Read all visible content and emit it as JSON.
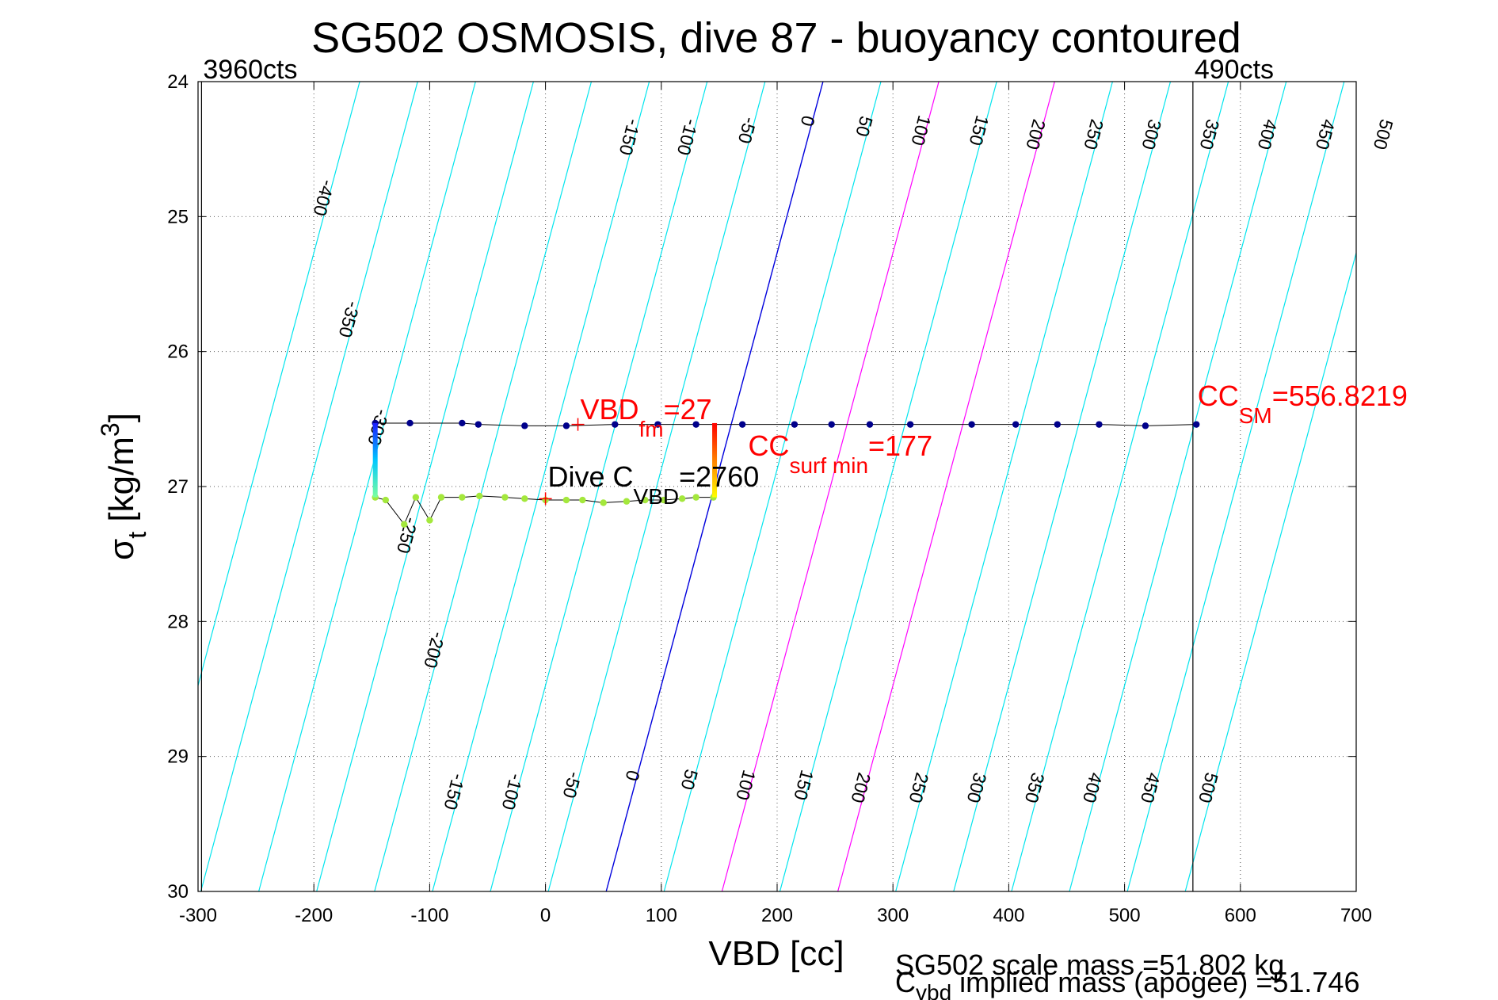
{
  "chart_data": {
    "type": "scatter",
    "title": "SG502 OSMOSIS, dive 87 - buoyancy contoured",
    "xlabel": "VBD [cc]",
    "ylabel_main": "σ",
    "ylabel_sub": "t",
    "ylabel_unit_pre": " [kg/m",
    "ylabel_unit_sup": "3",
    "ylabel_unit_post": "]",
    "xlim": [
      -300,
      700
    ],
    "ylim": [
      24,
      30
    ],
    "y_reversed": true,
    "grid": true,
    "grid_style": "dotted",
    "x_ticks": [
      "-300",
      "-200",
      "-100",
      "0",
      "100",
      "200",
      "300",
      "400",
      "500",
      "600",
      "700"
    ],
    "y_ticks": [
      "24",
      "25",
      "26",
      "27",
      "28",
      "29",
      "30"
    ],
    "count_markers": [
      {
        "vbd": -297,
        "label": "3960cts"
      },
      {
        "vbd": 559,
        "label": "490cts"
      }
    ],
    "contours": {
      "color_regular": "#00e5ee",
      "color_zero": "#0000dd",
      "color_highlight": "#ff00ff",
      "highlight_values": [
        100,
        200
      ],
      "slope_cc_per_sigma": -31.2,
      "values": [
        -400,
        -350,
        -300,
        -250,
        -200,
        -150,
        -100,
        -50,
        0,
        50,
        100,
        150,
        200,
        250,
        300,
        350,
        400,
        450,
        500
      ],
      "top_labels": [
        {
          "text": "-400",
          "c": -400,
          "y": 24.85
        },
        {
          "text": "-350",
          "c": -350,
          "y": 25.75
        },
        {
          "text": "-300",
          "c": -300,
          "y": 26.55
        },
        {
          "text": "-250",
          "c": -250,
          "y": 27.35
        },
        {
          "text": "-200",
          "c": -200,
          "y": 28.2
        },
        {
          "text": "-150",
          "c": -150,
          "y": 24.4
        },
        {
          "text": "-100",
          "c": -100,
          "y": 24.4
        },
        {
          "text": "-50",
          "c": -50,
          "y": 24.35
        },
        {
          "text": "0",
          "c": 0,
          "y": 24.28
        },
        {
          "text": "50",
          "c": 50,
          "y": 24.32
        },
        {
          "text": "100",
          "c": 100,
          "y": 24.35
        },
        {
          "text": "150",
          "c": 150,
          "y": 24.35
        },
        {
          "text": "200",
          "c": 200,
          "y": 24.38
        },
        {
          "text": "250",
          "c": 250,
          "y": 24.38
        },
        {
          "text": "300",
          "c": 300,
          "y": 24.38
        },
        {
          "text": "350",
          "c": 350,
          "y": 24.38
        },
        {
          "text": "400",
          "c": 400,
          "y": 24.38
        },
        {
          "text": "450",
          "c": 450,
          "y": 24.38
        },
        {
          "text": "500",
          "c": 500,
          "y": 24.38
        }
      ],
      "bottom_labels": [
        {
          "text": "-150",
          "c": -150,
          "y": 29.25
        },
        {
          "text": "-100",
          "c": -100,
          "y": 29.25
        },
        {
          "text": "-50",
          "c": -50,
          "y": 29.2
        },
        {
          "text": "0",
          "c": 0,
          "y": 29.13
        },
        {
          "text": "50",
          "c": 50,
          "y": 29.16
        },
        {
          "text": "100",
          "c": 100,
          "y": 29.2
        },
        {
          "text": "150",
          "c": 150,
          "y": 29.2
        },
        {
          "text": "200",
          "c": 200,
          "y": 29.22
        },
        {
          "text": "250",
          "c": 250,
          "y": 29.22
        },
        {
          "text": "300",
          "c": 300,
          "y": 29.22
        },
        {
          "text": "350",
          "c": 350,
          "y": 29.22
        },
        {
          "text": "400",
          "c": 400,
          "y": 29.22
        },
        {
          "text": "450",
          "c": 450,
          "y": 29.22
        },
        {
          "text": "500",
          "c": 500,
          "y": 29.22
        }
      ]
    },
    "series": [
      {
        "color": "#00008b",
        "points": [
          [
            -147,
            26.53
          ],
          [
            -117,
            26.53
          ],
          [
            -72,
            26.53
          ],
          [
            -58,
            26.54
          ],
          [
            -18,
            26.55
          ],
          [
            18,
            26.55
          ],
          [
            60,
            26.54
          ],
          [
            97,
            26.54
          ],
          [
            130,
            26.54
          ],
          [
            170,
            26.54
          ],
          [
            215,
            26.54
          ],
          [
            247,
            26.54
          ],
          [
            280,
            26.54
          ],
          [
            315,
            26.54
          ],
          [
            368,
            26.54
          ],
          [
            406,
            26.54
          ],
          [
            442,
            26.54
          ],
          [
            478,
            26.54
          ],
          [
            518,
            26.55
          ],
          [
            562,
            26.54
          ]
        ]
      },
      {
        "color": "#a4e83c",
        "points": [
          [
            -147,
            27.08
          ],
          [
            -138,
            27.1
          ],
          [
            -122,
            27.28
          ],
          [
            -112,
            27.08
          ],
          [
            -100,
            27.25
          ],
          [
            -90,
            27.08
          ],
          [
            -72,
            27.08
          ],
          [
            -57,
            27.07
          ],
          [
            -35,
            27.08
          ],
          [
            -18,
            27.09
          ],
          [
            0,
            27.1
          ],
          [
            18,
            27.1
          ],
          [
            32,
            27.1
          ],
          [
            50,
            27.12
          ],
          [
            70,
            27.11
          ],
          [
            86,
            27.1
          ],
          [
            102,
            27.1
          ],
          [
            118,
            27.09
          ],
          [
            130,
            27.08
          ],
          [
            145,
            27.08
          ]
        ]
      }
    ],
    "vertical_gradient_bars": [
      {
        "vbd": -147,
        "y_top": 26.53,
        "y_bottom": 27.08,
        "colors": [
          "#1c1cff",
          "#00c8ff",
          "#7cffa0"
        ]
      },
      {
        "vbd": 146,
        "y_top": 26.53,
        "y_bottom": 27.08,
        "colors": [
          "#ff0000",
          "#ff8000",
          "#ffff00"
        ]
      }
    ],
    "crosses": [
      {
        "vbd": 28,
        "y": 26.54,
        "color": "#ff0000"
      },
      {
        "vbd": 0,
        "y": 27.09,
        "color": "#ff0000"
      }
    ],
    "annotations": {
      "vbd_fm": {
        "main": "VBD",
        "sub": "fm",
        "post": "=27",
        "color": "#ff0000",
        "vbd": 30,
        "y": 26.5
      },
      "cc_surf_min": {
        "main": "CC",
        "sub": "surf min",
        "post": "=177",
        "color": "#ff0000",
        "vbd": 175,
        "y": 26.77
      },
      "dive_c_vbd": {
        "main": "Dive C",
        "sub": "VBD",
        "post": "=2760",
        "color": "#000000",
        "vbd": 2,
        "y": 27.0
      },
      "cc_sm": {
        "main": "CC",
        "sub": "SM",
        "post": "=556.8219",
        "color": "#ff0000",
        "vbd": 563,
        "y": 26.4
      }
    },
    "footer": {
      "line1": "SG502 scale mass =51.802 kg",
      "line2_main": "C",
      "line2_sub": "vbd",
      "line2_post": " implied mass (apogee) =51.746"
    }
  }
}
